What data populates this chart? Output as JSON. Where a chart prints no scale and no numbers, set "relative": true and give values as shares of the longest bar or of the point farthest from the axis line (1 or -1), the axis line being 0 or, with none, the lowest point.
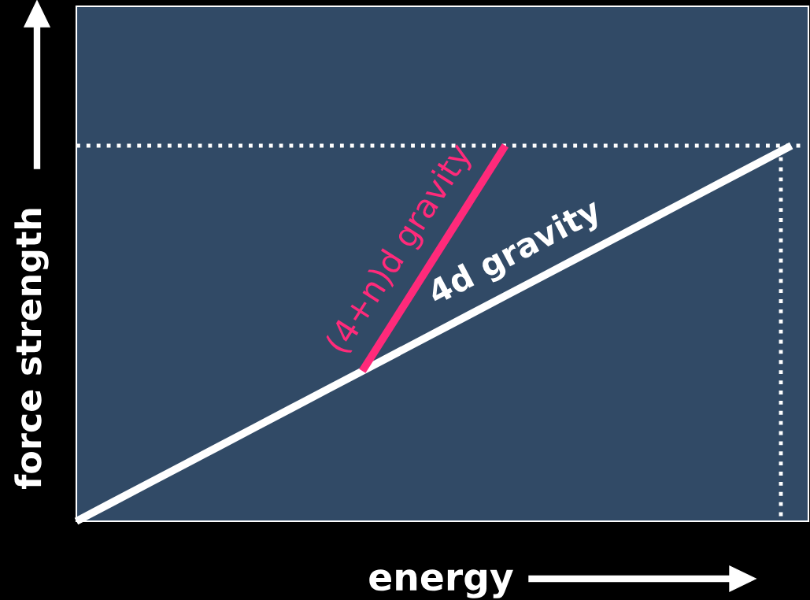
{
  "chart_data": {
    "type": "line",
    "relative": true,
    "xlabel": "energy",
    "ylabel": "force strength",
    "categories": [
      null,
      null,
      null,
      null,
      null,
      null,
      null,
      null,
      null,
      null,
      null,
      null,
      null,
      null,
      null,
      null,
      null,
      null,
      null,
      null,
      null
    ],
    "series": [
      {
        "name": "4d gravity",
        "color": "#ffffff",
        "values": [
          0,
          0.05,
          0.1,
          0.15,
          0.2,
          0.25,
          0.3,
          0.35,
          0.4,
          0.45,
          0.5,
          0.55,
          0.6,
          0.65,
          0.7,
          0.75,
          0.8,
          0.85,
          0.9,
          0.95,
          1
        ]
      },
      {
        "name": "(4+n)d gravity",
        "color": "#ff2a7a",
        "values": [
          null,
          null,
          null,
          null,
          null,
          null,
          null,
          null,
          0.4,
          0.55,
          0.7,
          0.85,
          1,
          null,
          null,
          null,
          null,
          null,
          null,
          null,
          null
        ]
      }
    ],
    "ref_lines": [
      {
        "axis": "y",
        "value": 1,
        "color": "#ffffff",
        "line_style": "dotted"
      }
    ],
    "line_style": "solid"
  }
}
